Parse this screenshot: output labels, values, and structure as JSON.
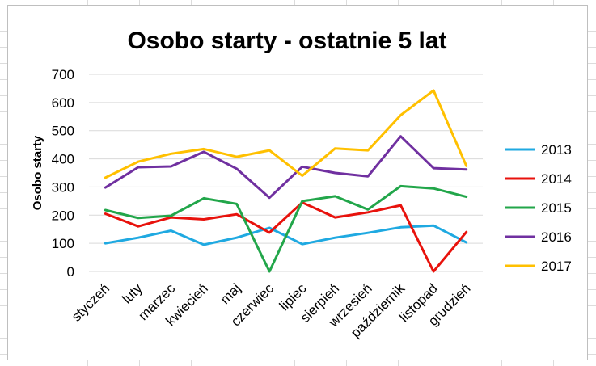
{
  "chart_data": {
    "type": "line",
    "title": "Osobo starty - ostatnie 5 lat",
    "xlabel": "",
    "ylabel": "Osobo starty",
    "ylim": [
      0,
      700
    ],
    "yticks": [
      0,
      100,
      200,
      300,
      400,
      500,
      600,
      700
    ],
    "grid": true,
    "legend_position": "right",
    "categories": [
      "styczeń",
      "luty",
      "marzec",
      "kwiecień",
      "maj",
      "czerwiec",
      "lipiec",
      "sierpień",
      "wrzesień",
      "październik",
      "listopad",
      "grudzień"
    ],
    "series": [
      {
        "name": "2013",
        "color": "#1fa9e1",
        "values": [
          100,
          120,
          145,
          95,
          120,
          155,
          97,
          120,
          137,
          157,
          163,
          103
        ]
      },
      {
        "name": "2014",
        "color": "#e8120c",
        "values": [
          205,
          160,
          192,
          185,
          203,
          138,
          245,
          192,
          210,
          235,
          0,
          140
        ]
      },
      {
        "name": "2015",
        "color": "#22a64a",
        "values": [
          218,
          190,
          198,
          260,
          240,
          0,
          250,
          267,
          220,
          303,
          295,
          265
        ]
      },
      {
        "name": "2016",
        "color": "#7030a0",
        "values": [
          298,
          370,
          373,
          425,
          365,
          262,
          372,
          350,
          338,
          480,
          367,
          362
        ]
      },
      {
        "name": "2017",
        "color": "#ffc000",
        "values": [
          333,
          390,
          418,
          435,
          407,
          430,
          340,
          437,
          430,
          555,
          643,
          375
        ]
      }
    ]
  }
}
